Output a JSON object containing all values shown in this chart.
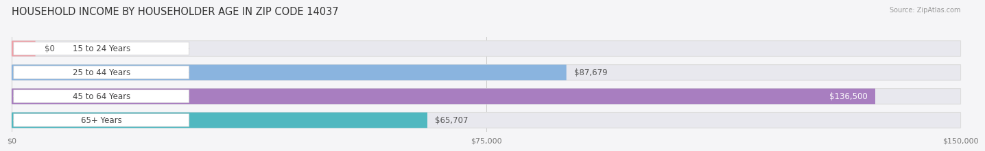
{
  "title": "HOUSEHOLD INCOME BY HOUSEHOLDER AGE IN ZIP CODE 14037",
  "source": "Source: ZipAtlas.com",
  "categories": [
    "15 to 24 Years",
    "25 to 44 Years",
    "45 to 64 Years",
    "65+ Years"
  ],
  "values": [
    0,
    87679,
    136500,
    65707
  ],
  "max_value": 150000,
  "bar_colors": [
    "#f0a0a8",
    "#8ab4df",
    "#a87ec0",
    "#50b8c0"
  ],
  "track_color": "#e8e8ee",
  "bar_height": 0.65,
  "background_color": "#f5f5f7",
  "title_fontsize": 10.5,
  "label_fontsize": 8.5,
  "tick_labels": [
    "$0",
    "$75,000",
    "$150,000"
  ],
  "tick_values": [
    0,
    75000,
    150000
  ],
  "value_labels": [
    "$0",
    "$87,679",
    "$136,500",
    "$65,707"
  ],
  "value_inside": [
    false,
    false,
    true,
    false
  ]
}
